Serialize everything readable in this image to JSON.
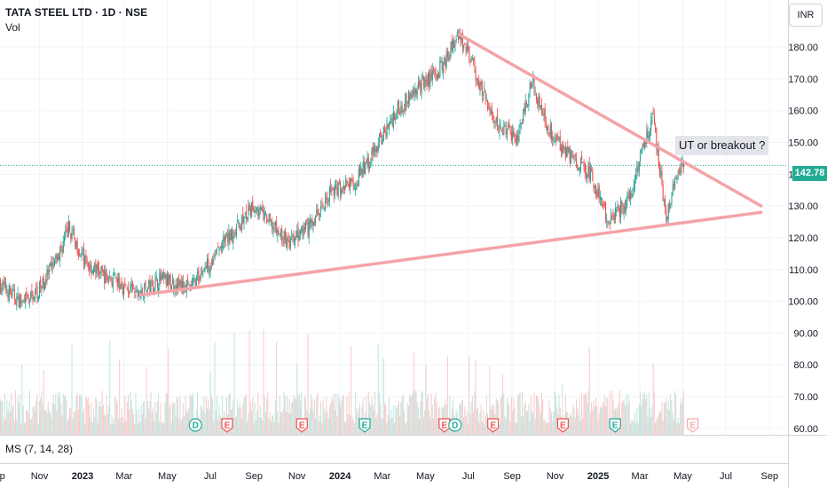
{
  "header": {
    "title": "TATA STEEL LTD · 1D · NSE",
    "volume_label": "Vol"
  },
  "currency": "INR",
  "current_price": "142.78",
  "annotation": "UT or breakout ?",
  "ms_label": "MS (7, 14, 28)",
  "colors": {
    "up": "#26a69a",
    "down": "#ef5350",
    "trendline": "#f4a3a8",
    "price_line": "#22ab94",
    "grid": "#f0f3fa"
  },
  "chart_data": {
    "type": "candlestick",
    "y_ticks": [
      "60.00",
      "70.00",
      "80.00",
      "90.00",
      "100.00",
      "110.00",
      "120.00",
      "130.00",
      "140.00",
      "150.00",
      "160.00",
      "170.00",
      "180.00"
    ],
    "ylim": [
      58,
      187
    ],
    "x_ticks": [
      "Sep",
      "Nov",
      "2023",
      "Mar",
      "May",
      "Jul",
      "Sep",
      "Nov",
      "2024",
      "Mar",
      "May",
      "Jul",
      "Sep",
      "Nov",
      "2025",
      "Mar",
      "May",
      "Jul",
      "Sep"
    ],
    "price_path": [
      {
        "date": "2022-09-01",
        "close": 106
      },
      {
        "date": "2022-10-10",
        "close": 99
      },
      {
        "date": "2022-11-01",
        "close": 104
      },
      {
        "date": "2022-11-25",
        "close": 113
      },
      {
        "date": "2022-12-12",
        "close": 123
      },
      {
        "date": "2023-01-05",
        "close": 112
      },
      {
        "date": "2023-02-01",
        "close": 108
      },
      {
        "date": "2023-03-20",
        "close": 102
      },
      {
        "date": "2023-04-20",
        "close": 107
      },
      {
        "date": "2023-06-01",
        "close": 104
      },
      {
        "date": "2023-07-15",
        "close": 117
      },
      {
        "date": "2023-09-01",
        "close": 130
      },
      {
        "date": "2023-10-20",
        "close": 118
      },
      {
        "date": "2023-11-20",
        "close": 124
      },
      {
        "date": "2023-12-20",
        "close": 135
      },
      {
        "date": "2024-01-20",
        "close": 137
      },
      {
        "date": "2024-02-20",
        "close": 148
      },
      {
        "date": "2024-03-20",
        "close": 160
      },
      {
        "date": "2024-04-20",
        "close": 167
      },
      {
        "date": "2024-05-20",
        "close": 173
      },
      {
        "date": "2024-06-18",
        "close": 184
      },
      {
        "date": "2024-07-10",
        "close": 172
      },
      {
        "date": "2024-08-10",
        "close": 155
      },
      {
        "date": "2024-09-10",
        "close": 152
      },
      {
        "date": "2024-09-28",
        "close": 170
      },
      {
        "date": "2024-10-20",
        "close": 155
      },
      {
        "date": "2024-11-25",
        "close": 145
      },
      {
        "date": "2024-12-20",
        "close": 140
      },
      {
        "date": "2025-01-15",
        "close": 125
      },
      {
        "date": "2025-02-15",
        "close": 133
      },
      {
        "date": "2025-03-05",
        "close": 150
      },
      {
        "date": "2025-03-20",
        "close": 157
      },
      {
        "date": "2025-04-07",
        "close": 126
      },
      {
        "date": "2025-04-25",
        "close": 142
      },
      {
        "date": "2025-05-02",
        "close": 142.78
      }
    ],
    "trendlines": [
      {
        "name": "support",
        "from": {
          "date": "2023-03-25",
          "price": 102
        },
        "to": {
          "date": "2025-08-20",
          "price": 128
        }
      },
      {
        "name": "resistance",
        "from": {
          "date": "2024-06-18",
          "price": 184
        },
        "to": {
          "date": "2025-08-20",
          "price": 130
        }
      }
    ],
    "events": [
      {
        "label": "D",
        "date": "2023-06-10",
        "kind": "dividend"
      },
      {
        "label": "E",
        "date": "2023-07-25",
        "kind": "earnings-past"
      },
      {
        "label": "E",
        "date": "2023-11-08",
        "kind": "earnings-past"
      },
      {
        "label": "E",
        "date": "2024-02-05",
        "kind": "earnings-current"
      },
      {
        "label": "E",
        "date": "2024-05-28",
        "kind": "earnings-past"
      },
      {
        "label": "D",
        "date": "2024-06-12",
        "kind": "dividend"
      },
      {
        "label": "E",
        "date": "2024-08-05",
        "kind": "earnings-past"
      },
      {
        "label": "E",
        "date": "2024-11-12",
        "kind": "earnings-past"
      },
      {
        "label": "E",
        "date": "2025-01-25",
        "kind": "earnings-current"
      },
      {
        "label": "E",
        "date": "2025-05-15",
        "kind": "earnings-future"
      }
    ]
  }
}
